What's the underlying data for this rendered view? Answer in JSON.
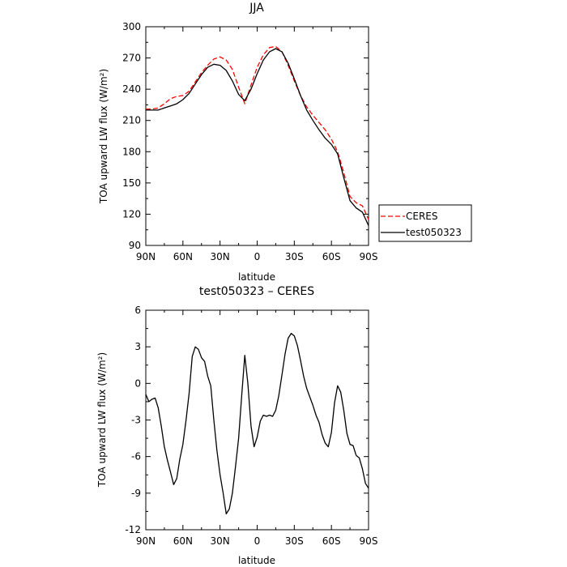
{
  "chart_data": [
    {
      "type": "line",
      "title": "JJA",
      "xlabel": "latitude",
      "ylabel": "TOA upward LW flux (W/m²)",
      "x_ticks": [
        90,
        60,
        30,
        0,
        -30,
        -60,
        -90
      ],
      "x_tick_labels": [
        "90N",
        "60N",
        "30N",
        "0",
        "30S",
        "60S",
        "90S"
      ],
      "xlim": [
        90,
        -90
      ],
      "y_ticks": [
        90,
        120,
        150,
        180,
        210,
        240,
        270,
        300
      ],
      "ylim": [
        90,
        300
      ],
      "grid": false,
      "legend_position": "right",
      "x": [
        90,
        85,
        80,
        75,
        70,
        65,
        60,
        55,
        50,
        45,
        40,
        35,
        30,
        25,
        20,
        15,
        10,
        5,
        0,
        -5,
        -10,
        -15,
        -20,
        -25,
        -30,
        -35,
        -40,
        -45,
        -50,
        -55,
        -60,
        -65,
        -70,
        -75,
        -80,
        -85,
        -90
      ],
      "series": [
        {
          "name": "CERES",
          "color": "#ff0000",
          "dash": "dashed",
          "values": [
            221,
            221,
            222,
            226,
            231,
            233,
            234,
            238,
            247,
            256,
            263,
            269,
            271,
            268,
            259,
            242,
            226,
            244,
            261,
            273,
            280,
            281,
            276,
            263,
            248,
            234,
            223,
            215,
            208,
            201,
            192,
            180,
            160,
            137,
            131,
            128,
            115
          ]
        },
        {
          "name": "test050323",
          "color": "#000000",
          "dash": "solid",
          "values": [
            220,
            220,
            220,
            222,
            224,
            226,
            230,
            236,
            245,
            254,
            261,
            264,
            263,
            258,
            248,
            235,
            229,
            240,
            255,
            268,
            276,
            279,
            276,
            265,
            250,
            234,
            220,
            210,
            201,
            193,
            187,
            178,
            155,
            133,
            126,
            122,
            109
          ]
        }
      ]
    },
    {
      "type": "line",
      "title": "test050323 – CERES",
      "xlabel": "latitude",
      "ylabel": "TOA upward LW flux (W/m²)",
      "x_ticks": [
        90,
        60,
        30,
        0,
        -30,
        -60,
        -90
      ],
      "x_tick_labels": [
        "90N",
        "60N",
        "30N",
        "0",
        "30S",
        "60S",
        "90S"
      ],
      "xlim": [
        90,
        -90
      ],
      "y_ticks": [
        -12,
        -9,
        -6,
        -3,
        0,
        3,
        6
      ],
      "ylim": [
        -12,
        6
      ],
      "grid": false,
      "x": [
        90,
        87.5,
        85,
        82.5,
        80,
        77.5,
        75,
        72.5,
        70,
        67.5,
        65,
        62.5,
        60,
        57.5,
        55,
        52.5,
        50,
        47.5,
        45,
        42.5,
        40,
        37.5,
        35,
        32.5,
        30,
        27.5,
        25,
        22.5,
        20,
        17.5,
        15,
        12.5,
        10,
        7.5,
        5,
        2.5,
        0,
        -2.5,
        -5,
        -7.5,
        -10,
        -12.5,
        -15,
        -17.5,
        -20,
        -22.5,
        -25,
        -27.5,
        -30,
        -32.5,
        -35,
        -37.5,
        -40,
        -42.5,
        -45,
        -47.5,
        -50,
        -52.5,
        -55,
        -57.5,
        -60,
        -62.5,
        -65,
        -67.5,
        -70,
        -72.5,
        -75,
        -77.5,
        -80,
        -82.5,
        -85,
        -87.5,
        -90
      ],
      "series": [
        {
          "name": "",
          "color": "#000000",
          "dash": "solid",
          "values": [
            -0.9,
            -1.5,
            -1.3,
            -1.2,
            -2.0,
            -3.5,
            -5.2,
            -6.3,
            -7.3,
            -8.3,
            -7.8,
            -6.2,
            -5.0,
            -3.0,
            -0.8,
            2.2,
            3.0,
            2.8,
            2.1,
            1.8,
            0.6,
            -0.2,
            -3.0,
            -5.5,
            -7.5,
            -9.0,
            -10.7,
            -10.3,
            -9.0,
            -6.8,
            -4.5,
            -1.0,
            2.3,
            0.0,
            -3.5,
            -5.2,
            -4.4,
            -3.1,
            -2.6,
            -2.7,
            -2.6,
            -2.7,
            -2.2,
            -1.0,
            0.7,
            2.4,
            3.7,
            4.1,
            3.9,
            3.1,
            1.9,
            0.6,
            -0.4,
            -1.1,
            -1.8,
            -2.6,
            -3.2,
            -4.2,
            -4.9,
            -5.2,
            -4.0,
            -1.6,
            -0.2,
            -0.7,
            -2.2,
            -4.1,
            -5.0,
            -5.1,
            -5.9,
            -6.1,
            -7.0,
            -8.2,
            -8.6
          ]
        }
      ]
    }
  ]
}
